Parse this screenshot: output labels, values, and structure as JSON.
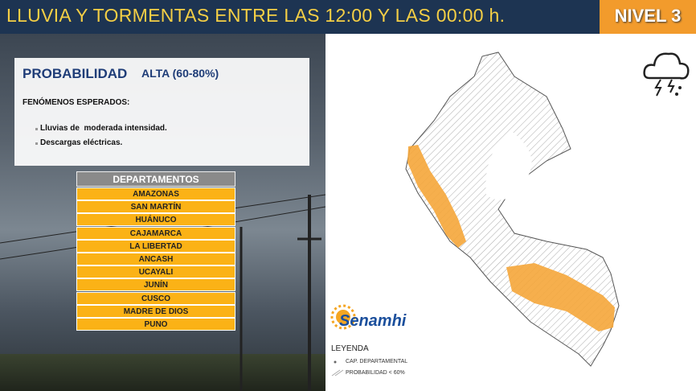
{
  "header": {
    "title": "LLUVIA Y TORMENTAS ENTRE LAS 12:00 Y LAS  00:00 h.",
    "level": "NIVEL 3"
  },
  "probability": {
    "label": "PROBABILIDAD",
    "value": "ALTA (60-80%)"
  },
  "phenomena": {
    "heading": "FENÓMENOS ESPERADOS:",
    "items": [
      "Lluvias de  moderada intensidad.",
      "Descargas eléctricas."
    ]
  },
  "departments": {
    "heading": "DEPARTAMENTOS",
    "items": [
      "AMAZONAS",
      "SAN MARTÍN",
      "HUÁNUCO",
      "CAJAMARCA",
      "LA LIBERTAD",
      "ANCASH",
      "UCAYALI",
      "JUNÍN",
      "CUSCO",
      "MADRE DE DIOS",
      "PUNO"
    ]
  },
  "logo": {
    "name": "Senamhi"
  },
  "legend": {
    "title": "LEYENDA",
    "items": [
      "CAP. DEPARTAMENTAL",
      "PROBABILIDAD < 60%"
    ]
  }
}
